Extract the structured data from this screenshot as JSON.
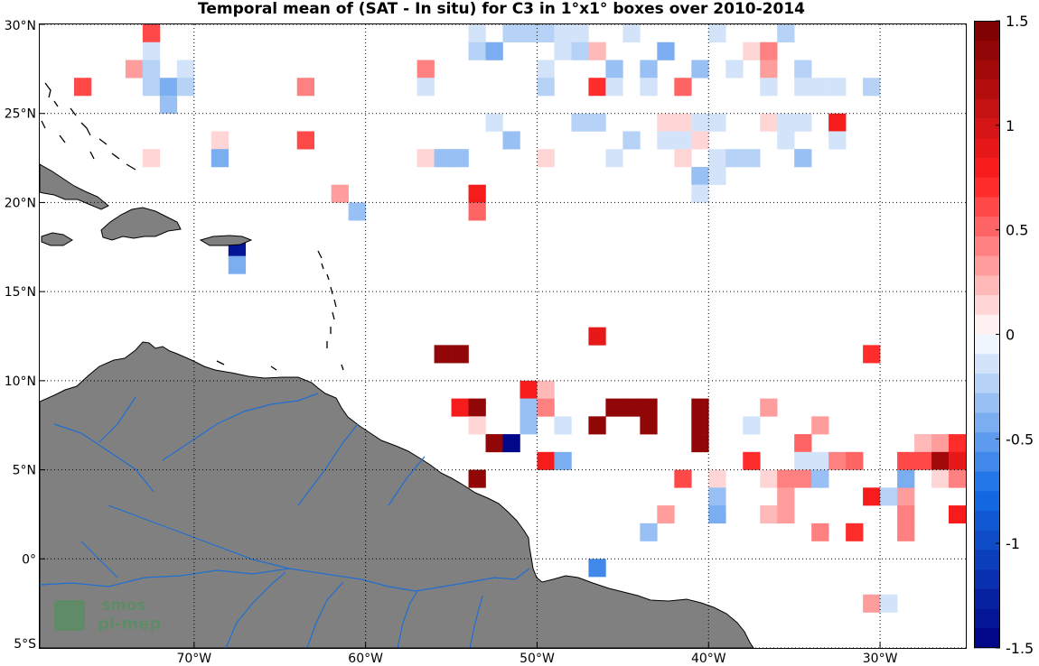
{
  "title": "Temporal mean of (SAT - In situ) for C3 in 1°x1° boxes over 2010-2014",
  "logo": {
    "line1": "smos",
    "line2": "pi-mep"
  },
  "map": {
    "lon_range": [
      -79,
      -25
    ],
    "lat_range": [
      -5,
      30
    ],
    "land_color": "#808080",
    "river_color": "#1f6fd0",
    "grid_style": "dotted",
    "lon_ticks": [
      {
        "lon": -70,
        "label": "70°W"
      },
      {
        "lon": -60,
        "label": "60°W"
      },
      {
        "lon": -50,
        "label": "50°W"
      },
      {
        "lon": -40,
        "label": "40°W"
      },
      {
        "lon": -30,
        "label": "30°W"
      }
    ],
    "lat_ticks": [
      {
        "lat": 30,
        "label": "30°N"
      },
      {
        "lat": 25,
        "label": "25°N"
      },
      {
        "lat": 20,
        "label": "20°N"
      },
      {
        "lat": 15,
        "label": "15°N"
      },
      {
        "lat": 10,
        "label": "10°N"
      },
      {
        "lat": 5,
        "label": "5°N"
      },
      {
        "lat": 0,
        "label": "0°"
      },
      {
        "lat": -5,
        "label": "5°S"
      }
    ]
  },
  "colorbar": {
    "range": [
      -1.5,
      1.5
    ],
    "levels": 32,
    "ticks": [
      {
        "v": 1.5,
        "label": "1.5"
      },
      {
        "v": 1,
        "label": "1"
      },
      {
        "v": 0.5,
        "label": "0.5"
      },
      {
        "v": 0,
        "label": "0"
      },
      {
        "v": -0.5,
        "label": "-0.5"
      },
      {
        "v": -1,
        "label": "-1"
      },
      {
        "v": -1.5,
        "label": "-1.5"
      }
    ]
  },
  "chart_data": {
    "type": "heatmap",
    "title": "Temporal mean of (SAT - In situ) for C3 in 1°x1° boxes over 2010-2014",
    "grid": "1x1 degree boxes",
    "cells": [
      {
        "lon": -73,
        "lat": 29,
        "v": 0.6
      },
      {
        "lon": -73,
        "lat": 28,
        "v": -0.1
      },
      {
        "lon": -74,
        "lat": 27,
        "v": 0.3
      },
      {
        "lon": -73,
        "lat": 27,
        "v": -0.2
      },
      {
        "lon": -71,
        "lat": 27,
        "v": -0.1
      },
      {
        "lon": -77,
        "lat": 26,
        "v": 0.6
      },
      {
        "lon": -73,
        "lat": 26,
        "v": -0.2
      },
      {
        "lon": -72,
        "lat": 26,
        "v": -0.4
      },
      {
        "lon": -71,
        "lat": 26,
        "v": -0.2
      },
      {
        "lon": -72,
        "lat": 25,
        "v": -0.3
      },
      {
        "lon": -69,
        "lat": 23,
        "v": 0.15
      },
      {
        "lon": -73,
        "lat": 22,
        "v": 0.15
      },
      {
        "lon": -69,
        "lat": 22,
        "v": -0.4
      },
      {
        "lon": -64,
        "lat": 26,
        "v": 0.4
      },
      {
        "lon": -64,
        "lat": 23,
        "v": 0.6
      },
      {
        "lon": -62,
        "lat": 20,
        "v": 0.3
      },
      {
        "lon": -61,
        "lat": 19,
        "v": -0.3
      },
      {
        "lon": -68,
        "lat": 17,
        "v": -1.4
      },
      {
        "lon": -68,
        "lat": 16,
        "v": -0.4
      },
      {
        "lon": -57,
        "lat": 27,
        "v": 0.4
      },
      {
        "lon": -57,
        "lat": 26,
        "v": -0.1
      },
      {
        "lon": -57,
        "lat": 22,
        "v": 0.15
      },
      {
        "lon": -56,
        "lat": 22,
        "v": -0.3
      },
      {
        "lon": -55,
        "lat": 22,
        "v": -0.3
      },
      {
        "lon": -54,
        "lat": 29,
        "v": -0.1
      },
      {
        "lon": -54,
        "lat": 28,
        "v": -0.2
      },
      {
        "lon": -53,
        "lat": 28,
        "v": -0.4
      },
      {
        "lon": -52,
        "lat": 29,
        "v": -0.2
      },
      {
        "lon": -51,
        "lat": 29,
        "v": -0.2
      },
      {
        "lon": -50,
        "lat": 29,
        "v": -0.2
      },
      {
        "lon": -49,
        "lat": 29,
        "v": -0.1
      },
      {
        "lon": -49,
        "lat": 30,
        "v": -0.1
      },
      {
        "lon": -49,
        "lat": 28,
        "v": -0.1
      },
      {
        "lon": -48,
        "lat": 29,
        "v": -0.1
      },
      {
        "lon": -48,
        "lat": 28,
        "v": -0.2
      },
      {
        "lon": -47,
        "lat": 28,
        "v": 0.2
      },
      {
        "lon": -45,
        "lat": 29,
        "v": -0.1
      },
      {
        "lon": -50,
        "lat": 27,
        "v": -0.1
      },
      {
        "lon": -50,
        "lat": 26,
        "v": -0.2
      },
      {
        "lon": -46,
        "lat": 27,
        "v": -0.3
      },
      {
        "lon": -44,
        "lat": 27,
        "v": -0.3
      },
      {
        "lon": -43,
        "lat": 28,
        "v": -0.4
      },
      {
        "lon": -41,
        "lat": 27,
        "v": -0.3
      },
      {
        "lon": -40,
        "lat": 29,
        "v": -0.1
      },
      {
        "lon": -39,
        "lat": 27,
        "v": -0.1
      },
      {
        "lon": -38,
        "lat": 28,
        "v": 0.15
      },
      {
        "lon": -37,
        "lat": 28,
        "v": 0.4
      },
      {
        "lon": -37,
        "lat": 27,
        "v": 0.3
      },
      {
        "lon": -36,
        "lat": 29,
        "v": -0.2
      },
      {
        "lon": -35,
        "lat": 27,
        "v": -0.2
      },
      {
        "lon": -53,
        "lat": 24,
        "v": -0.1
      },
      {
        "lon": -52,
        "lat": 23,
        "v": -0.3
      },
      {
        "lon": -47,
        "lat": 26,
        "v": 0.7
      },
      {
        "lon": -46,
        "lat": 26,
        "v": -0.1
      },
      {
        "lon": -44,
        "lat": 26,
        "v": -0.1
      },
      {
        "lon": -42,
        "lat": 26,
        "v": 0.5
      },
      {
        "lon": -37,
        "lat": 26,
        "v": -0.1
      },
      {
        "lon": -35,
        "lat": 26,
        "v": -0.1
      },
      {
        "lon": -34,
        "lat": 26,
        "v": -0.1
      },
      {
        "lon": -33,
        "lat": 26,
        "v": -0.1
      },
      {
        "lon": -31,
        "lat": 26,
        "v": -0.2
      },
      {
        "lon": -48,
        "lat": 24,
        "v": -0.2
      },
      {
        "lon": -47,
        "lat": 24,
        "v": -0.2
      },
      {
        "lon": -45,
        "lat": 23,
        "v": -0.2
      },
      {
        "lon": -43,
        "lat": 24,
        "v": 0.1
      },
      {
        "lon": -42,
        "lat": 24,
        "v": 0.1
      },
      {
        "lon": -41,
        "lat": 24,
        "v": -0.1
      },
      {
        "lon": -40,
        "lat": 24,
        "v": -0.1
      },
      {
        "lon": -43,
        "lat": 23,
        "v": -0.1
      },
      {
        "lon": -42,
        "lat": 23,
        "v": -0.1
      },
      {
        "lon": -41,
        "lat": 23,
        "v": 0.15
      },
      {
        "lon": -37,
        "lat": 24,
        "v": 0.15
      },
      {
        "lon": -36,
        "lat": 24,
        "v": -0.1
      },
      {
        "lon": -35,
        "lat": 24,
        "v": -0.1
      },
      {
        "lon": -33,
        "lat": 24,
        "v": 0.8
      },
      {
        "lon": -36,
        "lat": 23,
        "v": -0.1
      },
      {
        "lon": -33,
        "lat": 23,
        "v": -0.1
      },
      {
        "lon": -50,
        "lat": 22,
        "v": 0.15
      },
      {
        "lon": -46,
        "lat": 22,
        "v": -0.1
      },
      {
        "lon": -42,
        "lat": 22,
        "v": 0.15
      },
      {
        "lon": -40,
        "lat": 22,
        "v": -0.1
      },
      {
        "lon": -39,
        "lat": 22,
        "v": -0.2
      },
      {
        "lon": -38,
        "lat": 22,
        "v": -0.2
      },
      {
        "lon": -35,
        "lat": 22,
        "v": -0.3
      },
      {
        "lon": -41,
        "lat": 21,
        "v": -0.3
      },
      {
        "lon": -40,
        "lat": 21,
        "v": -0.1
      },
      {
        "lon": -41,
        "lat": 20,
        "v": -0.1
      },
      {
        "lon": -54,
        "lat": 20,
        "v": 0.8
      },
      {
        "lon": -54,
        "lat": 19,
        "v": 0.5
      },
      {
        "lon": -56,
        "lat": 11,
        "v": 1.4
      },
      {
        "lon": -55,
        "lat": 11,
        "v": 1.4
      },
      {
        "lon": -47,
        "lat": 12,
        "v": 0.9
      },
      {
        "lon": -31,
        "lat": 11,
        "v": 0.7
      },
      {
        "lon": -51,
        "lat": 9,
        "v": 0.8
      },
      {
        "lon": -50,
        "lat": 9,
        "v": 0.2
      },
      {
        "lon": -51,
        "lat": 8,
        "v": -0.3
      },
      {
        "lon": -50,
        "lat": 8,
        "v": 0.4
      },
      {
        "lon": -51,
        "lat": 7,
        "v": -0.3
      },
      {
        "lon": -49,
        "lat": 7,
        "v": -0.1
      },
      {
        "lon": -55,
        "lat": 8,
        "v": 0.8
      },
      {
        "lon": -54,
        "lat": 8,
        "v": 1.4
      },
      {
        "lon": -54,
        "lat": 7,
        "v": 0.15
      },
      {
        "lon": -53,
        "lat": 6,
        "v": 1.4
      },
      {
        "lon": -52,
        "lat": 6,
        "v": -1.5
      },
      {
        "lon": -50,
        "lat": 5,
        "v": 0.8
      },
      {
        "lon": -49,
        "lat": 5,
        "v": -0.4
      },
      {
        "lon": -54,
        "lat": 4,
        "v": 1.4
      },
      {
        "lon": -47,
        "lat": 7,
        "v": 1.4
      },
      {
        "lon": -46,
        "lat": 8,
        "v": 1.4
      },
      {
        "lon": -45,
        "lat": 8,
        "v": 1.4
      },
      {
        "lon": -44,
        "lat": 8,
        "v": 1.4
      },
      {
        "lon": -44,
        "lat": 7,
        "v": 1.4
      },
      {
        "lon": -41,
        "lat": 8,
        "v": 1.4
      },
      {
        "lon": -41,
        "lat": 7,
        "v": 1.4
      },
      {
        "lon": -41,
        "lat": 6,
        "v": 1.4
      },
      {
        "lon": -42,
        "lat": 4,
        "v": 0.6
      },
      {
        "lon": -37,
        "lat": 8,
        "v": 0.3
      },
      {
        "lon": -38,
        "lat": 7,
        "v": -0.1
      },
      {
        "lon": -34,
        "lat": 7,
        "v": 0.3
      },
      {
        "lon": -35,
        "lat": 6,
        "v": 0.5
      },
      {
        "lon": -38,
        "lat": 5,
        "v": 0.7
      },
      {
        "lon": -35,
        "lat": 5,
        "v": -0.1
      },
      {
        "lon": -34,
        "lat": 5,
        "v": -0.1
      },
      {
        "lon": -33,
        "lat": 5,
        "v": 0.4
      },
      {
        "lon": -32,
        "lat": 5,
        "v": 0.5
      },
      {
        "lon": -40,
        "lat": 4,
        "v": 0.1
      },
      {
        "lon": -37,
        "lat": 4,
        "v": 0.15
      },
      {
        "lon": -36,
        "lat": 4,
        "v": 0.4
      },
      {
        "lon": -35,
        "lat": 4,
        "v": 0.4
      },
      {
        "lon": -34,
        "lat": 4,
        "v": -0.3
      },
      {
        "lon": -40,
        "lat": 3,
        "v": -0.3
      },
      {
        "lon": -40,
        "lat": 2,
        "v": -0.4
      },
      {
        "lon": -37,
        "lat": 2,
        "v": 0.2
      },
      {
        "lon": -36,
        "lat": 3,
        "v": 0.3
      },
      {
        "lon": -36,
        "lat": 2,
        "v": 0.3
      },
      {
        "lon": -43,
        "lat": 2,
        "v": 0.3
      },
      {
        "lon": -44,
        "lat": 1,
        "v": -0.3
      },
      {
        "lon": -34,
        "lat": 1,
        "v": 0.4
      },
      {
        "lon": -32,
        "lat": 1,
        "v": 0.7
      },
      {
        "lon": -31,
        "lat": 3,
        "v": 0.8
      },
      {
        "lon": -30,
        "lat": 3,
        "v": -0.2
      },
      {
        "lon": -29,
        "lat": 3,
        "v": 0.3
      },
      {
        "lon": -29,
        "lat": 2,
        "v": 0.4
      },
      {
        "lon": -29,
        "lat": 1,
        "v": 0.4
      },
      {
        "lon": -29,
        "lat": 4,
        "v": -0.4
      },
      {
        "lon": -29,
        "lat": 5,
        "v": 0.6
      },
      {
        "lon": -28,
        "lat": 6,
        "v": 0.2
      },
      {
        "lon": -28,
        "lat": 5,
        "v": 0.6
      },
      {
        "lon": -27,
        "lat": 6,
        "v": 0.3
      },
      {
        "lon": -27,
        "lat": 5,
        "v": 1.3
      },
      {
        "lon": -26,
        "lat": 6,
        "v": 0.7
      },
      {
        "lon": -26,
        "lat": 5,
        "v": 0.9
      },
      {
        "lon": -27,
        "lat": 4,
        "v": 0.15
      },
      {
        "lon": -26,
        "lat": 4,
        "v": 0.4
      },
      {
        "lon": -26,
        "lat": 2,
        "v": 0.8
      },
      {
        "lon": -47,
        "lat": -1,
        "v": -0.6
      },
      {
        "lon": -31,
        "lat": -3,
        "v": 0.3
      },
      {
        "lon": -30,
        "lat": -3,
        "v": -0.1
      }
    ]
  }
}
